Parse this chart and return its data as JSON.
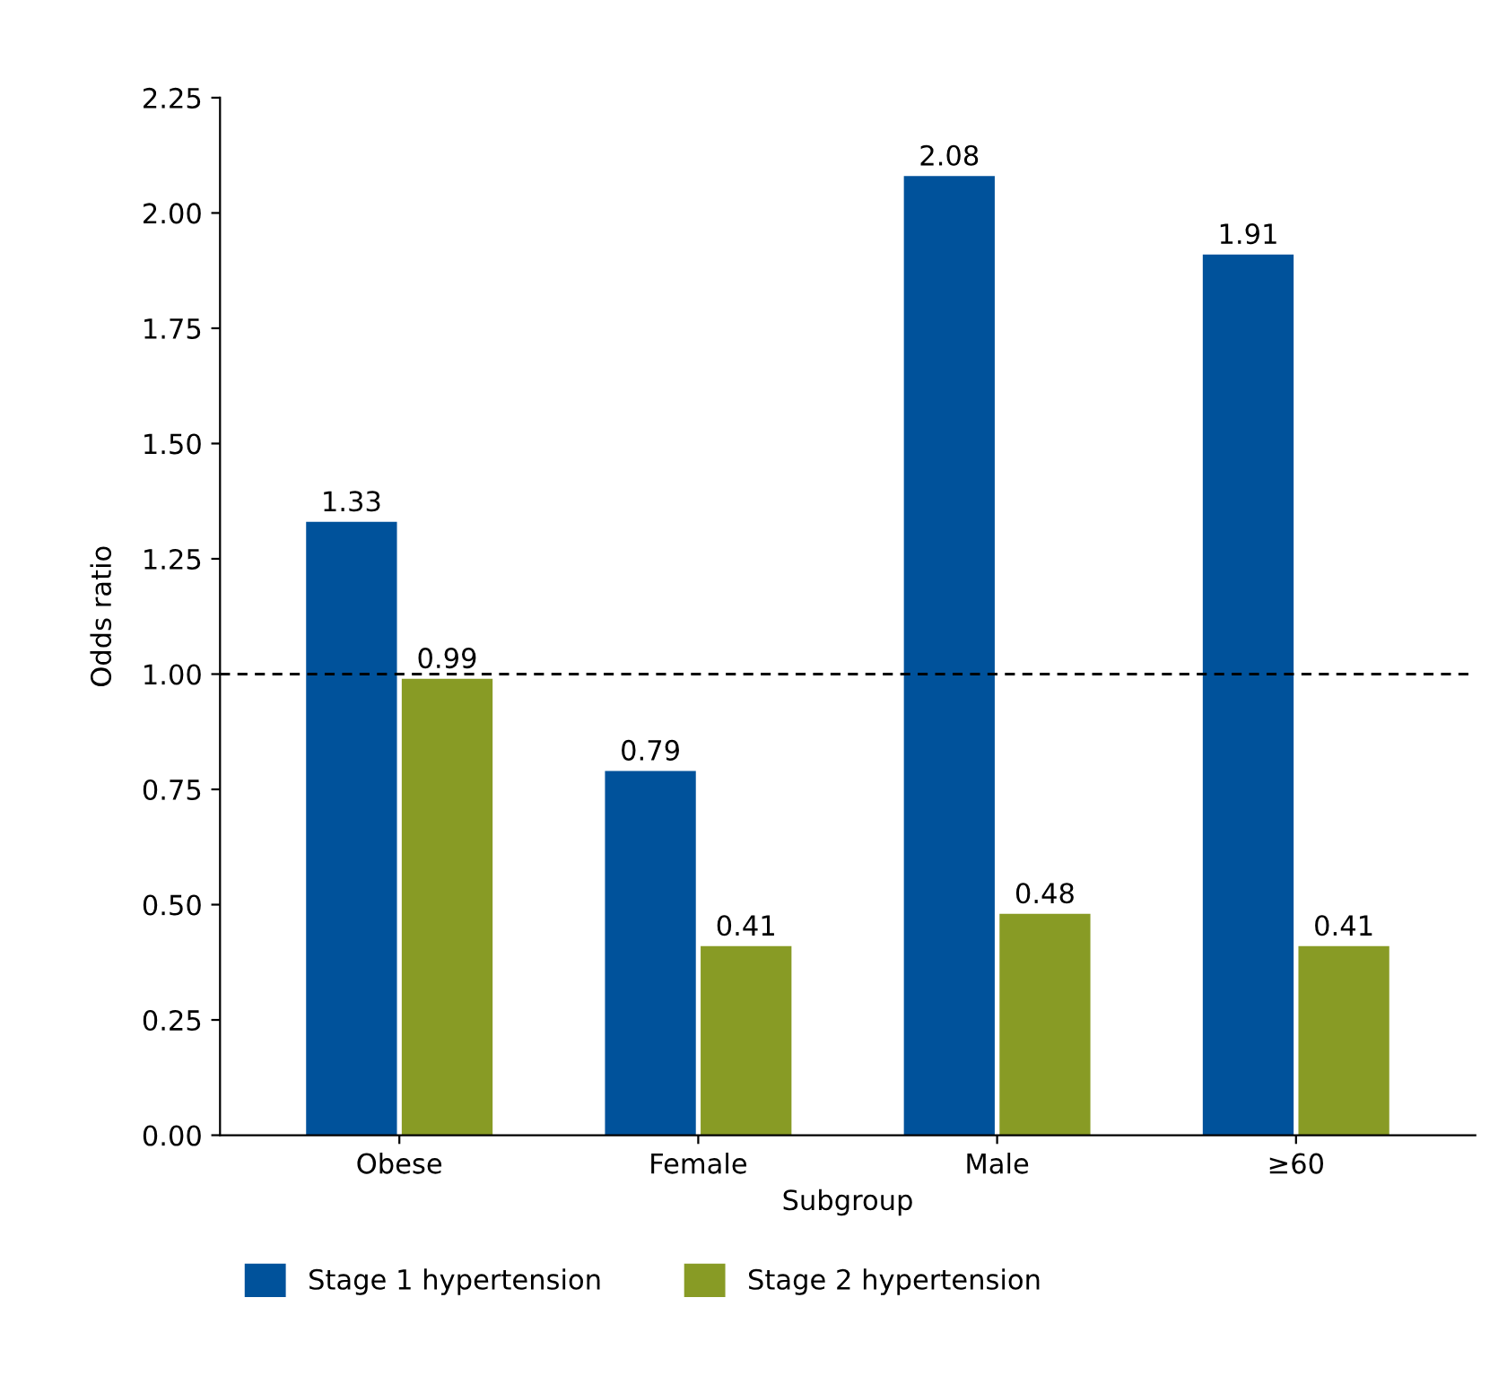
{
  "chart_data": {
    "type": "bar",
    "xlabel": "Subgroup",
    "ylabel": "Odds ratio",
    "categories": [
      "Obese",
      "Female",
      "Male",
      "≥60"
    ],
    "series": [
      {
        "name": "Stage 1 hypertension",
        "color": "#00529b",
        "values": [
          1.33,
          0.79,
          2.08,
          1.91
        ]
      },
      {
        "name": "Stage 2 hypertension",
        "color": "#889b25",
        "values": [
          0.99,
          0.41,
          0.48,
          0.41
        ]
      }
    ],
    "ylim": [
      0,
      2.25
    ],
    "yticks": [
      {
        "value": 0,
        "label": "0.00"
      },
      {
        "value": 0.25,
        "label": "0.25"
      },
      {
        "value": 0.5,
        "label": "0.50"
      },
      {
        "value": 0.75,
        "label": "0.75"
      },
      {
        "value": 1,
        "label": "1.00"
      },
      {
        "value": 1.25,
        "label": "1.25"
      },
      {
        "value": 1.5,
        "label": "1.50"
      },
      {
        "value": 1.75,
        "label": "1.75"
      },
      {
        "value": 2,
        "label": "2.00"
      },
      {
        "value": 2.25,
        "label": "2.25"
      }
    ],
    "ref_lines": [
      {
        "axis": "y",
        "value": 1,
        "label": null,
        "color": "#000000",
        "line_style": "dashed"
      }
    ],
    "data_labels": true,
    "grid": false,
    "legend": "bottom"
  }
}
